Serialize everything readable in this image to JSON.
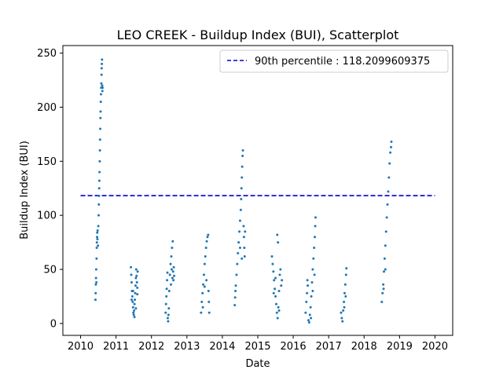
{
  "chart_data": {
    "type": "scatter",
    "title": "LEO CREEK - Buildup Index (BUI), Scatterplot",
    "xlabel": "Date",
    "ylabel": "Buildup Index (BUI)",
    "xlim": [
      2009.5,
      2020.5
    ],
    "ylim": [
      -11,
      257
    ],
    "xticks": [
      2010,
      2011,
      2012,
      2013,
      2014,
      2015,
      2016,
      2017,
      2018,
      2019,
      2020
    ],
    "xtick_labels": [
      "2010",
      "2011",
      "2012",
      "2013",
      "2014",
      "2015",
      "2016",
      "2017",
      "2018",
      "2019",
      "2020"
    ],
    "yticks": [
      0,
      50,
      100,
      150,
      200,
      250
    ],
    "ytick_labels": [
      "0",
      "50",
      "100",
      "150",
      "200",
      "250"
    ],
    "legend_position": "top-right",
    "series": [
      {
        "kind": "points",
        "color": "#1f77b4",
        "points": [
          [
            2010.42,
            22
          ],
          [
            2010.425,
            28
          ],
          [
            2010.43,
            36
          ],
          [
            2010.435,
            42
          ],
          [
            2010.44,
            50
          ],
          [
            2010.445,
            38
          ],
          [
            2010.45,
            60
          ],
          [
            2010.455,
            70
          ],
          [
            2010.46,
            75
          ],
          [
            2010.465,
            80
          ],
          [
            2010.47,
            84
          ],
          [
            2010.475,
            78
          ],
          [
            2010.48,
            86
          ],
          [
            2010.49,
            72
          ],
          [
            2010.5,
            90
          ],
          [
            2010.51,
            100
          ],
          [
            2010.515,
            110
          ],
          [
            2010.52,
            118
          ],
          [
            2010.525,
            125
          ],
          [
            2010.53,
            132
          ],
          [
            2010.535,
            140
          ],
          [
            2010.54,
            150
          ],
          [
            2010.545,
            160
          ],
          [
            2010.55,
            170
          ],
          [
            2010.555,
            180
          ],
          [
            2010.56,
            190
          ],
          [
            2010.565,
            196
          ],
          [
            2010.57,
            205
          ],
          [
            2010.575,
            212
          ],
          [
            2010.58,
            218
          ],
          [
            2010.585,
            222
          ],
          [
            2010.59,
            230
          ],
          [
            2010.595,
            236
          ],
          [
            2010.6,
            240
          ],
          [
            2010.605,
            244
          ],
          [
            2010.61,
            220
          ],
          [
            2010.615,
            215
          ],
          [
            2010.62,
            218
          ],
          [
            2011.42,
            52
          ],
          [
            2011.43,
            45
          ],
          [
            2011.44,
            38
          ],
          [
            2011.45,
            30
          ],
          [
            2011.46,
            25
          ],
          [
            2011.47,
            20
          ],
          [
            2011.48,
            15
          ],
          [
            2011.49,
            10
          ],
          [
            2011.5,
            8
          ],
          [
            2011.51,
            12
          ],
          [
            2011.52,
            18
          ],
          [
            2011.53,
            22
          ],
          [
            2011.54,
            28
          ],
          [
            2011.55,
            35
          ],
          [
            2011.56,
            42
          ],
          [
            2011.57,
            50
          ],
          [
            2011.58,
            44
          ],
          [
            2011.59,
            38
          ],
          [
            2011.6,
            33
          ],
          [
            2011.61,
            48
          ],
          [
            2011.44,
            22
          ],
          [
            2011.48,
            30
          ],
          [
            2011.52,
            6
          ],
          [
            2011.56,
            14
          ],
          [
            2011.6,
            27
          ],
          [
            2012.4,
            10
          ],
          [
            2012.41,
            18
          ],
          [
            2012.42,
            25
          ],
          [
            2012.43,
            32
          ],
          [
            2012.44,
            40
          ],
          [
            2012.45,
            47
          ],
          [
            2012.46,
            5
          ],
          [
            2012.47,
            2
          ],
          [
            2012.48,
            8
          ],
          [
            2012.49,
            14
          ],
          [
            2012.5,
            30
          ],
          [
            2012.52,
            45
          ],
          [
            2012.54,
            55
          ],
          [
            2012.56,
            62
          ],
          [
            2012.58,
            70
          ],
          [
            2012.6,
            76
          ],
          [
            2012.61,
            48
          ],
          [
            2012.62,
            40
          ],
          [
            2012.63,
            52
          ],
          [
            2012.64,
            44
          ],
          [
            2012.55,
            36
          ],
          [
            2012.57,
            50
          ],
          [
            2012.59,
            42
          ],
          [
            2013.4,
            10
          ],
          [
            2013.42,
            20
          ],
          [
            2013.44,
            28
          ],
          [
            2013.46,
            36
          ],
          [
            2013.48,
            45
          ],
          [
            2013.5,
            55
          ],
          [
            2013.52,
            62
          ],
          [
            2013.54,
            70
          ],
          [
            2013.56,
            76
          ],
          [
            2013.58,
            80
          ],
          [
            2013.6,
            82
          ],
          [
            2013.61,
            30
          ],
          [
            2013.62,
            20
          ],
          [
            2013.63,
            10
          ],
          [
            2013.55,
            40
          ],
          [
            2013.45,
            15
          ],
          [
            2013.5,
            34
          ],
          [
            2014.35,
            17
          ],
          [
            2014.36,
            24
          ],
          [
            2014.37,
            30
          ],
          [
            2014.38,
            35
          ],
          [
            2014.4,
            45
          ],
          [
            2014.42,
            55
          ],
          [
            2014.44,
            65
          ],
          [
            2014.46,
            75
          ],
          [
            2014.48,
            85
          ],
          [
            2014.5,
            95
          ],
          [
            2014.52,
            105
          ],
          [
            2014.53,
            115
          ],
          [
            2014.54,
            125
          ],
          [
            2014.55,
            135
          ],
          [
            2014.56,
            145
          ],
          [
            2014.57,
            155
          ],
          [
            2014.58,
            160
          ],
          [
            2014.6,
            90
          ],
          [
            2014.61,
            80
          ],
          [
            2014.62,
            70
          ],
          [
            2014.63,
            62
          ],
          [
            2014.64,
            85
          ],
          [
            2014.5,
            70
          ],
          [
            2014.55,
            60
          ],
          [
            2015.4,
            62
          ],
          [
            2015.42,
            55
          ],
          [
            2015.44,
            48
          ],
          [
            2015.46,
            40
          ],
          [
            2015.48,
            32
          ],
          [
            2015.5,
            25
          ],
          [
            2015.52,
            18
          ],
          [
            2015.54,
            10
          ],
          [
            2015.56,
            5
          ],
          [
            2015.58,
            15
          ],
          [
            2015.6,
            30
          ],
          [
            2015.62,
            45
          ],
          [
            2015.64,
            50
          ],
          [
            2015.55,
            82
          ],
          [
            2015.57,
            75
          ],
          [
            2015.66,
            35
          ],
          [
            2015.68,
            40
          ],
          [
            2015.5,
            42
          ],
          [
            2015.45,
            28
          ],
          [
            2015.6,
            12
          ],
          [
            2016.35,
            10
          ],
          [
            2016.37,
            20
          ],
          [
            2016.39,
            28
          ],
          [
            2016.41,
            35
          ],
          [
            2016.43,
            3
          ],
          [
            2016.45,
            1
          ],
          [
            2016.47,
            8
          ],
          [
            2016.49,
            15
          ],
          [
            2016.51,
            25
          ],
          [
            2016.53,
            38
          ],
          [
            2016.55,
            50
          ],
          [
            2016.57,
            60
          ],
          [
            2016.59,
            70
          ],
          [
            2016.61,
            80
          ],
          [
            2016.62,
            90
          ],
          [
            2016.63,
            98
          ],
          [
            2016.55,
            30
          ],
          [
            2016.6,
            45
          ],
          [
            2016.5,
            5
          ],
          [
            2016.4,
            40
          ],
          [
            2017.35,
            10
          ],
          [
            2017.37,
            5
          ],
          [
            2017.39,
            2
          ],
          [
            2017.41,
            12
          ],
          [
            2017.43,
            20
          ],
          [
            2017.45,
            28
          ],
          [
            2017.47,
            36
          ],
          [
            2017.49,
            45
          ],
          [
            2017.5,
            51
          ],
          [
            2017.44,
            15
          ],
          [
            2017.48,
            25
          ],
          [
            2018.5,
            20
          ],
          [
            2018.52,
            28
          ],
          [
            2018.54,
            36
          ],
          [
            2018.56,
            48
          ],
          [
            2018.58,
            60
          ],
          [
            2018.6,
            72
          ],
          [
            2018.62,
            85
          ],
          [
            2018.64,
            98
          ],
          [
            2018.66,
            110
          ],
          [
            2018.68,
            122
          ],
          [
            2018.7,
            135
          ],
          [
            2018.72,
            148
          ],
          [
            2018.74,
            158
          ],
          [
            2018.76,
            163
          ],
          [
            2018.77,
            168
          ],
          [
            2018.55,
            32
          ],
          [
            2018.6,
            50
          ]
        ]
      },
      {
        "kind": "hline",
        "name": "90th percentile : 118.2099609375",
        "color": "#0000cc",
        "y": 118.2099609375,
        "x_range": [
          2010,
          2020
        ]
      }
    ]
  }
}
